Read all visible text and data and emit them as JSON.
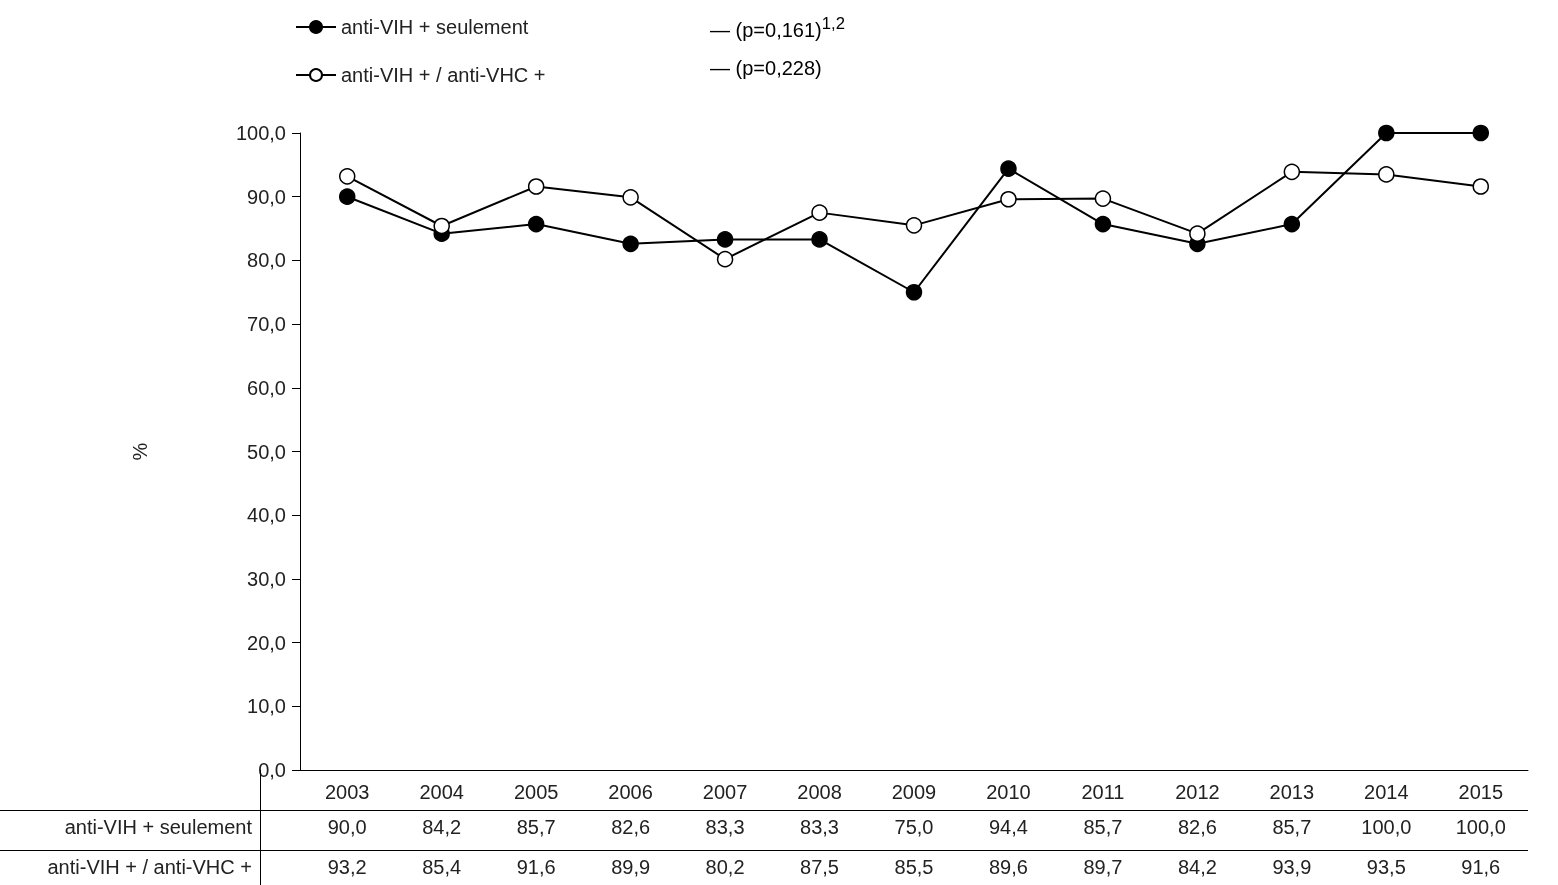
{
  "chart_data": {
    "type": "line",
    "ylabel": "%",
    "categories": [
      "2003",
      "2004",
      "2005",
      "2006",
      "2007",
      "2008",
      "2009",
      "2010",
      "2011",
      "2012",
      "2013",
      "2014",
      "2015"
    ],
    "series": [
      {
        "name": "anti-VIH + seulement",
        "color": "#000000",
        "values": [
          90.0,
          84.2,
          85.7,
          82.6,
          83.3,
          83.3,
          75.0,
          94.4,
          85.7,
          82.6,
          85.7,
          100.0,
          100.0
        ],
        "value_labels": [
          "90,0",
          "84,2",
          "85,7",
          "82,6",
          "83,3",
          "83,3",
          "75,0",
          "94,4",
          "85,7",
          "82,6",
          "85,7",
          "100,0",
          "100,0"
        ]
      },
      {
        "name": "anti-VIH + / anti-VHC +",
        "color": "#000000",
        "values": [
          93.2,
          85.4,
          91.6,
          89.9,
          80.2,
          87.5,
          85.5,
          89.6,
          89.7,
          84.2,
          93.9,
          93.5,
          91.6
        ],
        "value_labels": [
          "93,2",
          "85,4",
          "91,6",
          "89,9",
          "80,2",
          "87,5",
          "85,5",
          "89,6",
          "89,7",
          "84,2",
          "93,9",
          "93,5",
          "91,6"
        ]
      }
    ],
    "annotations": [
      "— (p=0,161)$^{1,2}$",
      "— (p=0,228)"
    ],
    "ylim": [
      0,
      100
    ],
    "yticks": [
      {
        "value": 0,
        "label": "0,0"
      },
      {
        "value": 10,
        "label": "10,0"
      },
      {
        "value": 20,
        "label": "20,0"
      },
      {
        "value": 30,
        "label": "30,0"
      },
      {
        "value": 40,
        "label": "40,0"
      },
      {
        "value": 50,
        "label": "50,0"
      },
      {
        "value": 60,
        "label": "60,0"
      },
      {
        "value": 70,
        "label": "70,0"
      },
      {
        "value": 80,
        "label": "80,0"
      },
      {
        "value": 90,
        "label": "90,0"
      },
      {
        "value": 100,
        "label": "100,0"
      }
    ],
    "grid": false,
    "legend": "top",
    "marker": "circle",
    "line_style": "solid"
  }
}
